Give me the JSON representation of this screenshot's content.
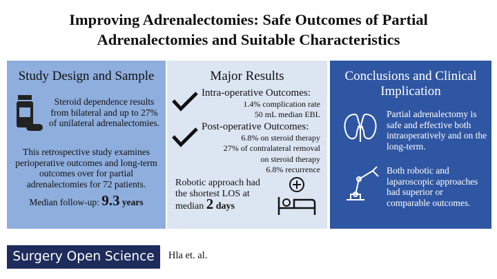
{
  "header": {
    "title": "Improving Adrenalectomies: Safe Outcomes of Partial Adrenalectomies and Suitable Characteristics"
  },
  "study": {
    "title": "Study Design and Sample",
    "dependence": "Steroid dependence results from bilateral and up to 27% of unilateral adrenalectomies.",
    "description": "This retrospective study examines perioperative outcomes and long-term outcomes over for partial adrenalectomies for 72 patients.",
    "followup_label": "Median follow-up:",
    "followup_value": "9.3",
    "followup_unit": "years"
  },
  "results": {
    "title": "Major Results",
    "intra": {
      "heading": "Intra-operative Outcomes:",
      "lines": [
        "1.4% complication rate",
        "50 mL median EBL"
      ]
    },
    "post": {
      "heading": "Post-operative Outcomes:",
      "lines": [
        "6.8% on steroid therapy",
        "27% of contralateral removal on steroid therapy",
        "6.8% recurrence"
      ]
    },
    "los_text": "Robotic approach had the shortest LOS at median",
    "los_value": "2",
    "los_unit": "days"
  },
  "conclusions": {
    "title": "Conclusions and Clinical Implication",
    "items": [
      "Partial adrenalectomy is safe and effective both intraoperatively and on the long-term.",
      "Both robotic and laparoscopic approaches had superior or comparable outcomes."
    ]
  },
  "footer": {
    "journal": "Surgery Open Science",
    "authors": "Hla et. al."
  }
}
